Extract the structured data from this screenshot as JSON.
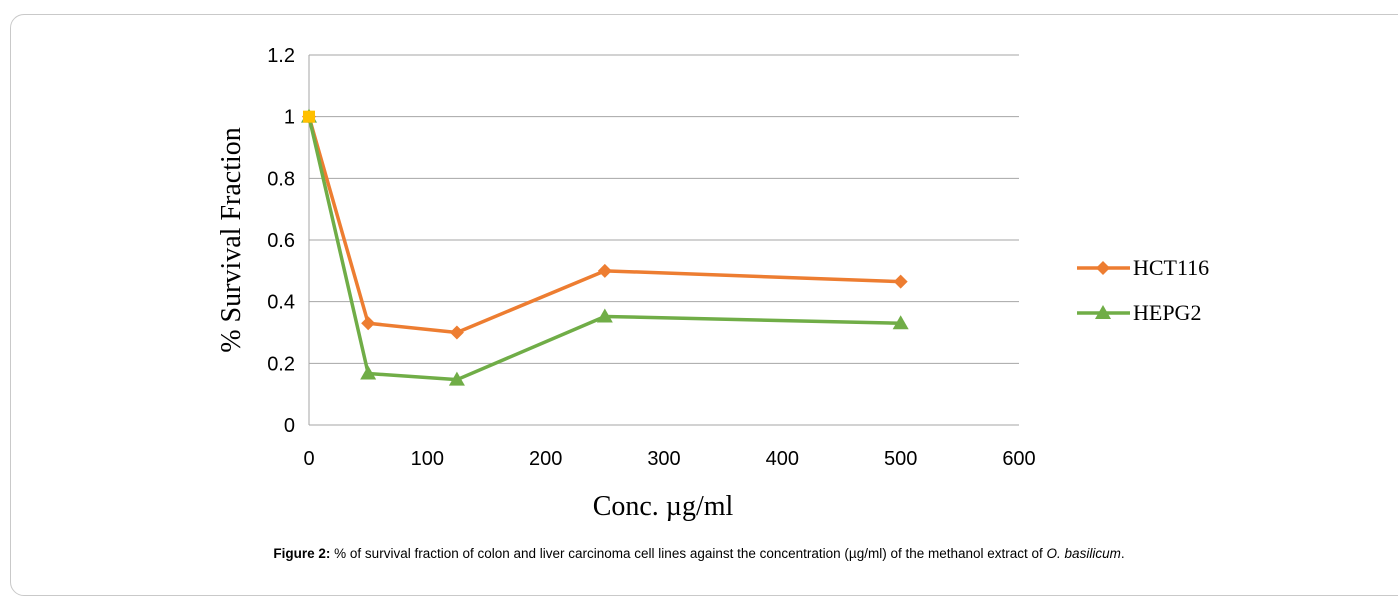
{
  "chart_data": {
    "type": "line",
    "xlabel": "Conc. µg/ml",
    "ylabel": "% Survival  Fraction",
    "xlim": [
      0,
      600
    ],
    "ylim": [
      0,
      1.2
    ],
    "x_ticks": [
      "0",
      "100",
      "200",
      "300",
      "400",
      "500",
      "600"
    ],
    "y_ticks": [
      "0",
      "0.2",
      "0.4",
      "0.6",
      "0.8",
      "1",
      "1.2"
    ],
    "grid": "horizontal",
    "legend_position": "right",
    "series": [
      {
        "name": "HCT116",
        "color": "#ED7D31",
        "marker": "diamond",
        "x": [
          0,
          50,
          125,
          250,
          500
        ],
        "y": [
          1.0,
          0.33,
          0.3,
          0.5,
          0.465
        ]
      },
      {
        "name": "HEPG2",
        "color": "#70AD47",
        "marker": "triangle",
        "x": [
          0,
          50,
          125,
          250,
          500
        ],
        "y": [
          1.0,
          0.167,
          0.147,
          0.352,
          0.33
        ]
      }
    ]
  },
  "caption": {
    "label": "Figure 2:",
    "text_before": " % of survival fraction of colon and liver carcinoma cell lines against the concentration (µg/ml) of the methanol extract of ",
    "species": "O. basilicum",
    "text_after": "."
  }
}
